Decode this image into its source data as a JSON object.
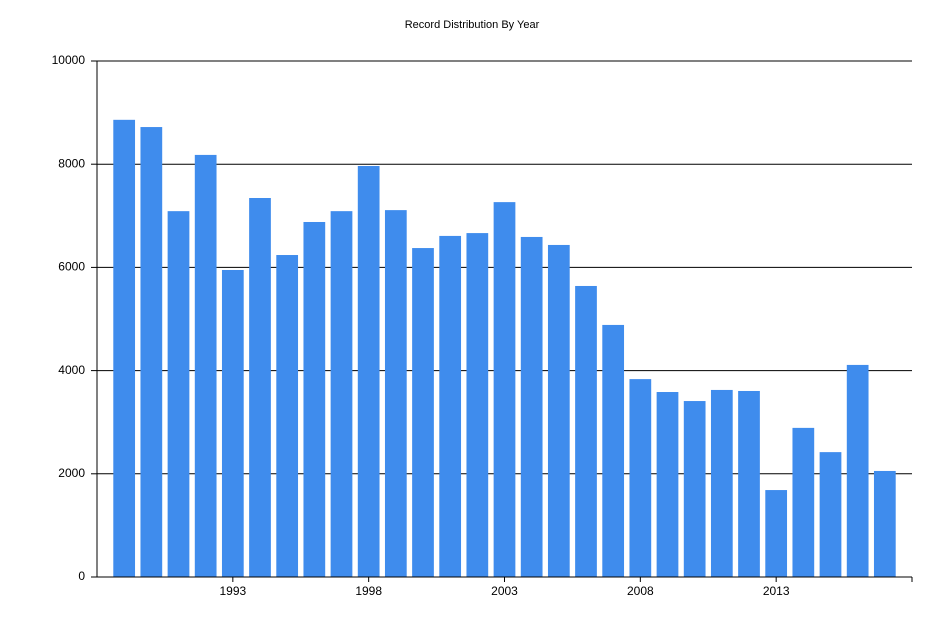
{
  "chart_data": {
    "type": "bar",
    "title": "Record Distribution By Year",
    "x": [
      1989,
      1990,
      1991,
      1992,
      1993,
      1994,
      1995,
      1996,
      1997,
      1998,
      1999,
      2000,
      2001,
      2002,
      2003,
      2004,
      2005,
      2006,
      2007,
      2008,
      2009,
      2010,
      2011,
      2012,
      2013,
      2014,
      2015,
      2016,
      2017
    ],
    "values": [
      8860,
      8720,
      7090,
      8180,
      5950,
      7345,
      6240,
      6880,
      7090,
      7965,
      7110,
      6375,
      6610,
      6665,
      7265,
      6590,
      6435,
      5640,
      4885,
      3835,
      3585,
      3410,
      3625,
      3605,
      1685,
      2890,
      2420,
      4110,
      2055
    ],
    "color": "#3f8ced",
    "xlim": [
      1988,
      2018
    ],
    "xticks": [
      1993,
      1998,
      2003,
      2008,
      2013
    ],
    "ylim": [
      0,
      10000
    ],
    "yticks": [
      0,
      2000,
      4000,
      6000,
      8000,
      10000
    ],
    "grid": true
  }
}
